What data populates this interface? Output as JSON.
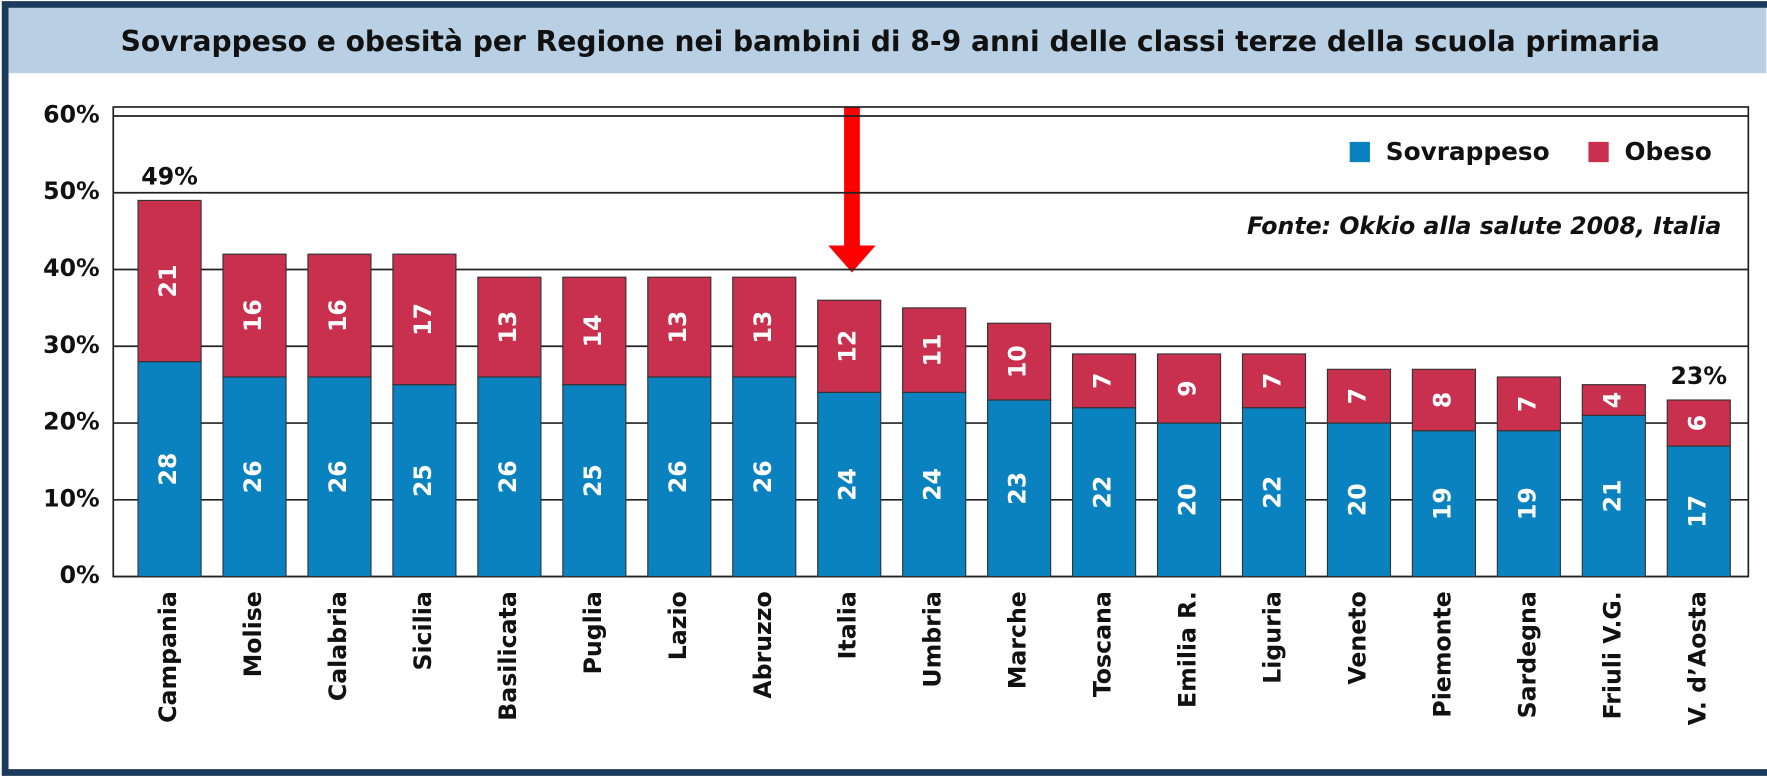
{
  "chart_data": {
    "type": "stacked_bar",
    "title": "Sovrappeso e obesità per Regione nei bambini di 8-9 anni delle classi terze della scuola primaria",
    "source": "Fonte: Okkio alla salute 2008, Italia",
    "categories": [
      "Campania",
      "Molise",
      "Calabria",
      "Sicilia",
      "Basilicata",
      "Puglia",
      "Lazio",
      "Abruzzo",
      "Italia",
      "Umbria",
      "Marche",
      "Toscana",
      "Emilia R.",
      "Liguria",
      "Veneto",
      "Piemonte",
      "Sardegna",
      "Friuli V.G.",
      "V. d’Aosta"
    ],
    "series": [
      {
        "name": "Sovrappeso",
        "color": "#0a82c0",
        "values": [
          28,
          26,
          26,
          25,
          26,
          25,
          26,
          26,
          24,
          24,
          23,
          22,
          20,
          22,
          20,
          19,
          19,
          21,
          17
        ]
      },
      {
        "name": "Obeso",
        "color": "#c8304e",
        "values": [
          21,
          16,
          16,
          17,
          13,
          14,
          13,
          13,
          12,
          11,
          10,
          7,
          9,
          7,
          7,
          8,
          7,
          4,
          6
        ]
      }
    ],
    "annotations": [
      {
        "text": "49%",
        "category": "Campania"
      },
      {
        "text": "23%",
        "category": "V. d’Aosta"
      }
    ],
    "ylim": [
      0,
      60
    ],
    "yticks": [
      {
        "value": 0,
        "label": "0%"
      },
      {
        "value": 10,
        "label": "10%"
      },
      {
        "value": 20,
        "label": "20%"
      },
      {
        "value": 30,
        "label": "30%"
      },
      {
        "value": 40,
        "label": "40%"
      },
      {
        "value": 50,
        "label": "50%"
      },
      {
        "value": 60,
        "label": "60%"
      }
    ],
    "grid": true,
    "legend": "top-right"
  }
}
